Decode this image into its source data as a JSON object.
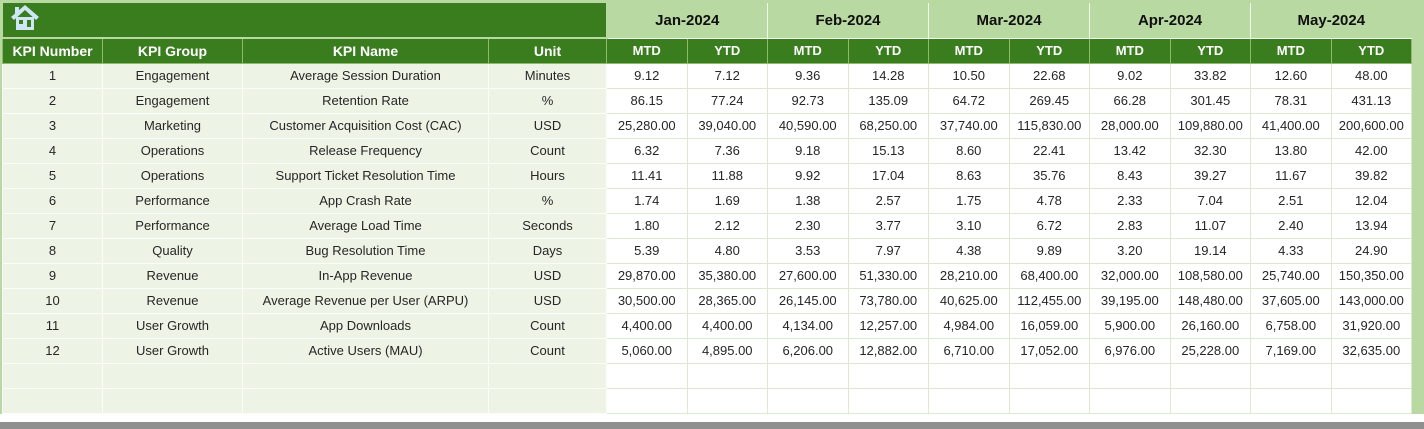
{
  "table": {
    "months": [
      "Jan-2024",
      "Feb-2024",
      "Mar-2024",
      "Apr-2024",
      "May-2024"
    ],
    "subheaders": [
      "MTD",
      "YTD",
      "MTD",
      "YTD",
      "MTD",
      "YTD",
      "MTD",
      "YTD",
      "MTD",
      "YTD"
    ],
    "left_headers": [
      "KPI Number",
      "KPI Group",
      "KPI Name",
      "Unit"
    ],
    "rows": [
      {
        "kpi_number": "1",
        "kpi_group": "Engagement",
        "kpi_name": "Average Session Duration",
        "unit": "Minutes",
        "values": [
          "9.12",
          "7.12",
          "9.36",
          "14.28",
          "10.50",
          "22.68",
          "9.02",
          "33.82",
          "12.60",
          "48.00"
        ]
      },
      {
        "kpi_number": "2",
        "kpi_group": "Engagement",
        "kpi_name": "Retention Rate",
        "unit": "%",
        "values": [
          "86.15",
          "77.24",
          "92.73",
          "135.09",
          "64.72",
          "269.45",
          "66.28",
          "301.45",
          "78.31",
          "431.13"
        ]
      },
      {
        "kpi_number": "3",
        "kpi_group": "Marketing",
        "kpi_name": "Customer Acquisition Cost (CAC)",
        "unit": "USD",
        "values": [
          "25,280.00",
          "39,040.00",
          "40,590.00",
          "68,250.00",
          "37,740.00",
          "115,830.00",
          "28,000.00",
          "109,880.00",
          "41,400.00",
          "200,600.00"
        ]
      },
      {
        "kpi_number": "4",
        "kpi_group": "Operations",
        "kpi_name": "Release Frequency",
        "unit": "Count",
        "values": [
          "6.32",
          "7.36",
          "9.18",
          "15.13",
          "8.60",
          "22.41",
          "13.42",
          "32.30",
          "13.80",
          "42.00"
        ]
      },
      {
        "kpi_number": "5",
        "kpi_group": "Operations",
        "kpi_name": "Support Ticket Resolution Time",
        "unit": "Hours",
        "values": [
          "11.41",
          "11.88",
          "9.92",
          "17.04",
          "8.63",
          "35.76",
          "8.43",
          "39.27",
          "11.67",
          "39.82"
        ]
      },
      {
        "kpi_number": "6",
        "kpi_group": "Performance",
        "kpi_name": "App Crash Rate",
        "unit": "%",
        "values": [
          "1.74",
          "1.69",
          "1.38",
          "2.57",
          "1.75",
          "4.78",
          "2.33",
          "7.04",
          "2.51",
          "12.04"
        ]
      },
      {
        "kpi_number": "7",
        "kpi_group": "Performance",
        "kpi_name": "Average Load Time",
        "unit": "Seconds",
        "values": [
          "1.80",
          "2.12",
          "2.30",
          "3.77",
          "3.10",
          "6.72",
          "2.83",
          "11.07",
          "2.40",
          "13.94"
        ]
      },
      {
        "kpi_number": "8",
        "kpi_group": "Quality",
        "kpi_name": "Bug Resolution Time",
        "unit": "Days",
        "values": [
          "5.39",
          "4.80",
          "3.53",
          "7.97",
          "4.38",
          "9.89",
          "3.20",
          "19.14",
          "4.33",
          "24.90"
        ]
      },
      {
        "kpi_number": "9",
        "kpi_group": "Revenue",
        "kpi_name": "In-App Revenue",
        "unit": "USD",
        "values": [
          "29,870.00",
          "35,380.00",
          "27,600.00",
          "51,330.00",
          "28,210.00",
          "68,400.00",
          "32,000.00",
          "108,580.00",
          "25,740.00",
          "150,350.00"
        ]
      },
      {
        "kpi_number": "10",
        "kpi_group": "Revenue",
        "kpi_name": "Average Revenue per User (ARPU)",
        "unit": "USD",
        "values": [
          "30,500.00",
          "28,365.00",
          "26,145.00",
          "73,780.00",
          "40,625.00",
          "112,455.00",
          "39,195.00",
          "148,480.00",
          "37,605.00",
          "143,000.00"
        ]
      },
      {
        "kpi_number": "11",
        "kpi_group": "User Growth",
        "kpi_name": "App Downloads",
        "unit": "Count",
        "values": [
          "4,400.00",
          "4,400.00",
          "4,134.00",
          "12,257.00",
          "4,984.00",
          "16,059.00",
          "5,900.00",
          "26,160.00",
          "6,758.00",
          "31,920.00"
        ]
      },
      {
        "kpi_number": "12",
        "kpi_group": "User Growth",
        "kpi_name": "Active Users (MAU)",
        "unit": "Count",
        "values": [
          "5,060.00",
          "4,895.00",
          "6,206.00",
          "12,882.00",
          "6,710.00",
          "17,052.00",
          "6,976.00",
          "25,228.00",
          "7,169.00",
          "32,635.00"
        ]
      }
    ],
    "empty_row_count": 2
  },
  "icons": {
    "home": "home-icon"
  },
  "colors": {
    "dark_green": "#3a7d1e",
    "light_green": "#b9d9a2",
    "pale_green": "#edf4e6",
    "home_icon_blue": "#cfe6f7",
    "bottom_bar_gray": "#8f8f8f"
  }
}
